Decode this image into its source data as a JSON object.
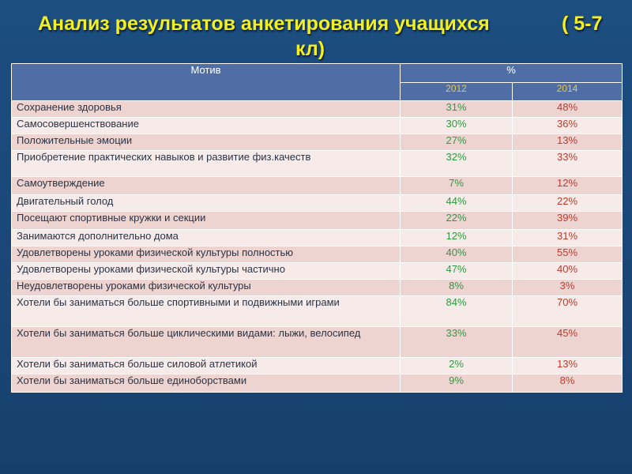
{
  "title": {
    "main": "Анализ результатов анкетирования учащихся",
    "grade_part1": "( 5-7",
    "grade_part2": "кл)"
  },
  "table": {
    "header_motive": "Мотив",
    "header_percent": "%",
    "year1": "2012",
    "year2": "2014",
    "rows": [
      {
        "label": "Сохранение здоровья",
        "v2012": "31%",
        "v2014": "48%"
      },
      {
        "label": "Самосовершенствование",
        "v2012": "30%",
        "v2014": "36%"
      },
      {
        "label": "Положительные эмоции",
        "v2012": "27%",
        "v2014": "13%"
      },
      {
        "label": "Приобретение практических навыков и развитие физ.качеств",
        "v2012": "32%",
        "v2014": "33%"
      },
      {
        "label": "Самоутверждение",
        "v2012": "7%",
        "v2014": "12%"
      },
      {
        "label": "Двигательный голод",
        "v2012": "44%",
        "v2014": "22%"
      },
      {
        "label": "Посещают спортивные кружки и секции",
        "v2012": "22%",
        "v2014": "39%"
      },
      {
        "label": "Занимаются дополнительно дома",
        "v2012": "12%",
        "v2014": "31%"
      },
      {
        "label": "Удовлетворены уроками физической культуры  полностью",
        "v2012": "40%",
        "v2014": "55%"
      },
      {
        "label": "Удовлетворены уроками физической культуры  частично",
        "v2012": "47%",
        "v2014": "40%"
      },
      {
        "label": "Неудовлетворены уроками физической культуры",
        "v2012": "8%",
        "v2014": "3%"
      },
      {
        "label": "Хотели бы заниматься больше спортивными и подвижными играми",
        "v2012": "84%",
        "v2014": "70%"
      },
      {
        "label": "Хотели бы заниматься больше циклическими видами: лыжи, велосипед",
        "v2012": "33%",
        "v2014": "45%"
      },
      {
        "label": "Хотели бы заниматься больше силовой атлетикой",
        "v2012": "2%",
        "v2014": "13%"
      },
      {
        "label": "Хотели бы заниматься больше единоборствами",
        "v2012": "9%",
        "v2014": "8%"
      }
    ]
  },
  "colors": {
    "title": "#f4ef1e",
    "background": "#1c4e80",
    "header": "#4f6ea6",
    "row_odd": "#eed4d1",
    "row_even": "#f7ebe9",
    "value_2012": "#2d9a3f",
    "value_2014": "#c0392b"
  }
}
